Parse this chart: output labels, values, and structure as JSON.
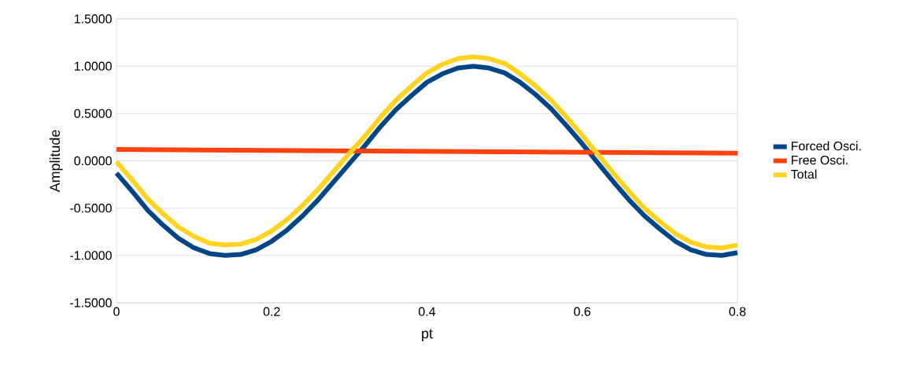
{
  "chart_data": {
    "type": "line",
    "xlabel": "pt",
    "ylabel": "Amplitude",
    "x": [
      0,
      0.02,
      0.04,
      0.06,
      0.08,
      0.1,
      0.12,
      0.14,
      0.16,
      0.18,
      0.2,
      0.22,
      0.24,
      0.26,
      0.28,
      0.3,
      0.32,
      0.34,
      0.36,
      0.38,
      0.4,
      0.42,
      0.44,
      0.46,
      0.48,
      0.5,
      0.52,
      0.54,
      0.56,
      0.58,
      0.6,
      0.62,
      0.64,
      0.66,
      0.68,
      0.7,
      0.72,
      0.74,
      0.76,
      0.78,
      0.8
    ],
    "series": [
      {
        "name": "Forced Osci.",
        "color": "#004586",
        "values": [
          -0.13,
          -0.32,
          -0.52,
          -0.68,
          -0.82,
          -0.92,
          -0.98,
          -1.0,
          -0.99,
          -0.94,
          -0.85,
          -0.73,
          -0.58,
          -0.41,
          -0.22,
          -0.03,
          0.16,
          0.36,
          0.54,
          0.69,
          0.83,
          0.92,
          0.98,
          1.0,
          0.98,
          0.93,
          0.83,
          0.7,
          0.55,
          0.37,
          0.18,
          -0.02,
          -0.22,
          -0.41,
          -0.58,
          -0.72,
          -0.85,
          -0.94,
          -0.99,
          -1.0,
          -0.97
        ]
      },
      {
        "name": "Free Osci.",
        "color": "#ff420e",
        "x": [
          0,
          0.4,
          0.8
        ],
        "values": [
          0.12,
          0.1,
          0.08
        ]
      },
      {
        "name": "Total",
        "color": "#ffd320",
        "values": [
          -0.01,
          -0.2,
          -0.4,
          -0.56,
          -0.7,
          -0.8,
          -0.87,
          -0.89,
          -0.88,
          -0.83,
          -0.74,
          -0.62,
          -0.47,
          -0.3,
          -0.11,
          0.08,
          0.26,
          0.46,
          0.64,
          0.79,
          0.93,
          1.02,
          1.08,
          1.1,
          1.08,
          1.03,
          0.92,
          0.79,
          0.64,
          0.46,
          0.27,
          0.07,
          -0.13,
          -0.32,
          -0.5,
          -0.64,
          -0.77,
          -0.86,
          -0.91,
          -0.92,
          -0.89
        ]
      }
    ],
    "xlim": [
      0,
      0.8
    ],
    "xticks": [
      0,
      0.2,
      0.4,
      0.6,
      0.8
    ],
    "ylim": [
      -1.5,
      1.5
    ],
    "yticks": [
      {
        "value": -1.5,
        "label": "-1.5000"
      },
      {
        "value": -1.0,
        "label": "-1.0000"
      },
      {
        "value": -0.5,
        "label": "-0.5000"
      },
      {
        "value": 0,
        "label": "0.0000"
      },
      {
        "value": 0.5,
        "label": "0.5000"
      },
      {
        "value": 1.0,
        "label": "1.0000"
      },
      {
        "value": 1.5,
        "label": "1.5000"
      }
    ],
    "grid": "y",
    "legend": "right",
    "marker": "none",
    "line_style": "solid"
  }
}
